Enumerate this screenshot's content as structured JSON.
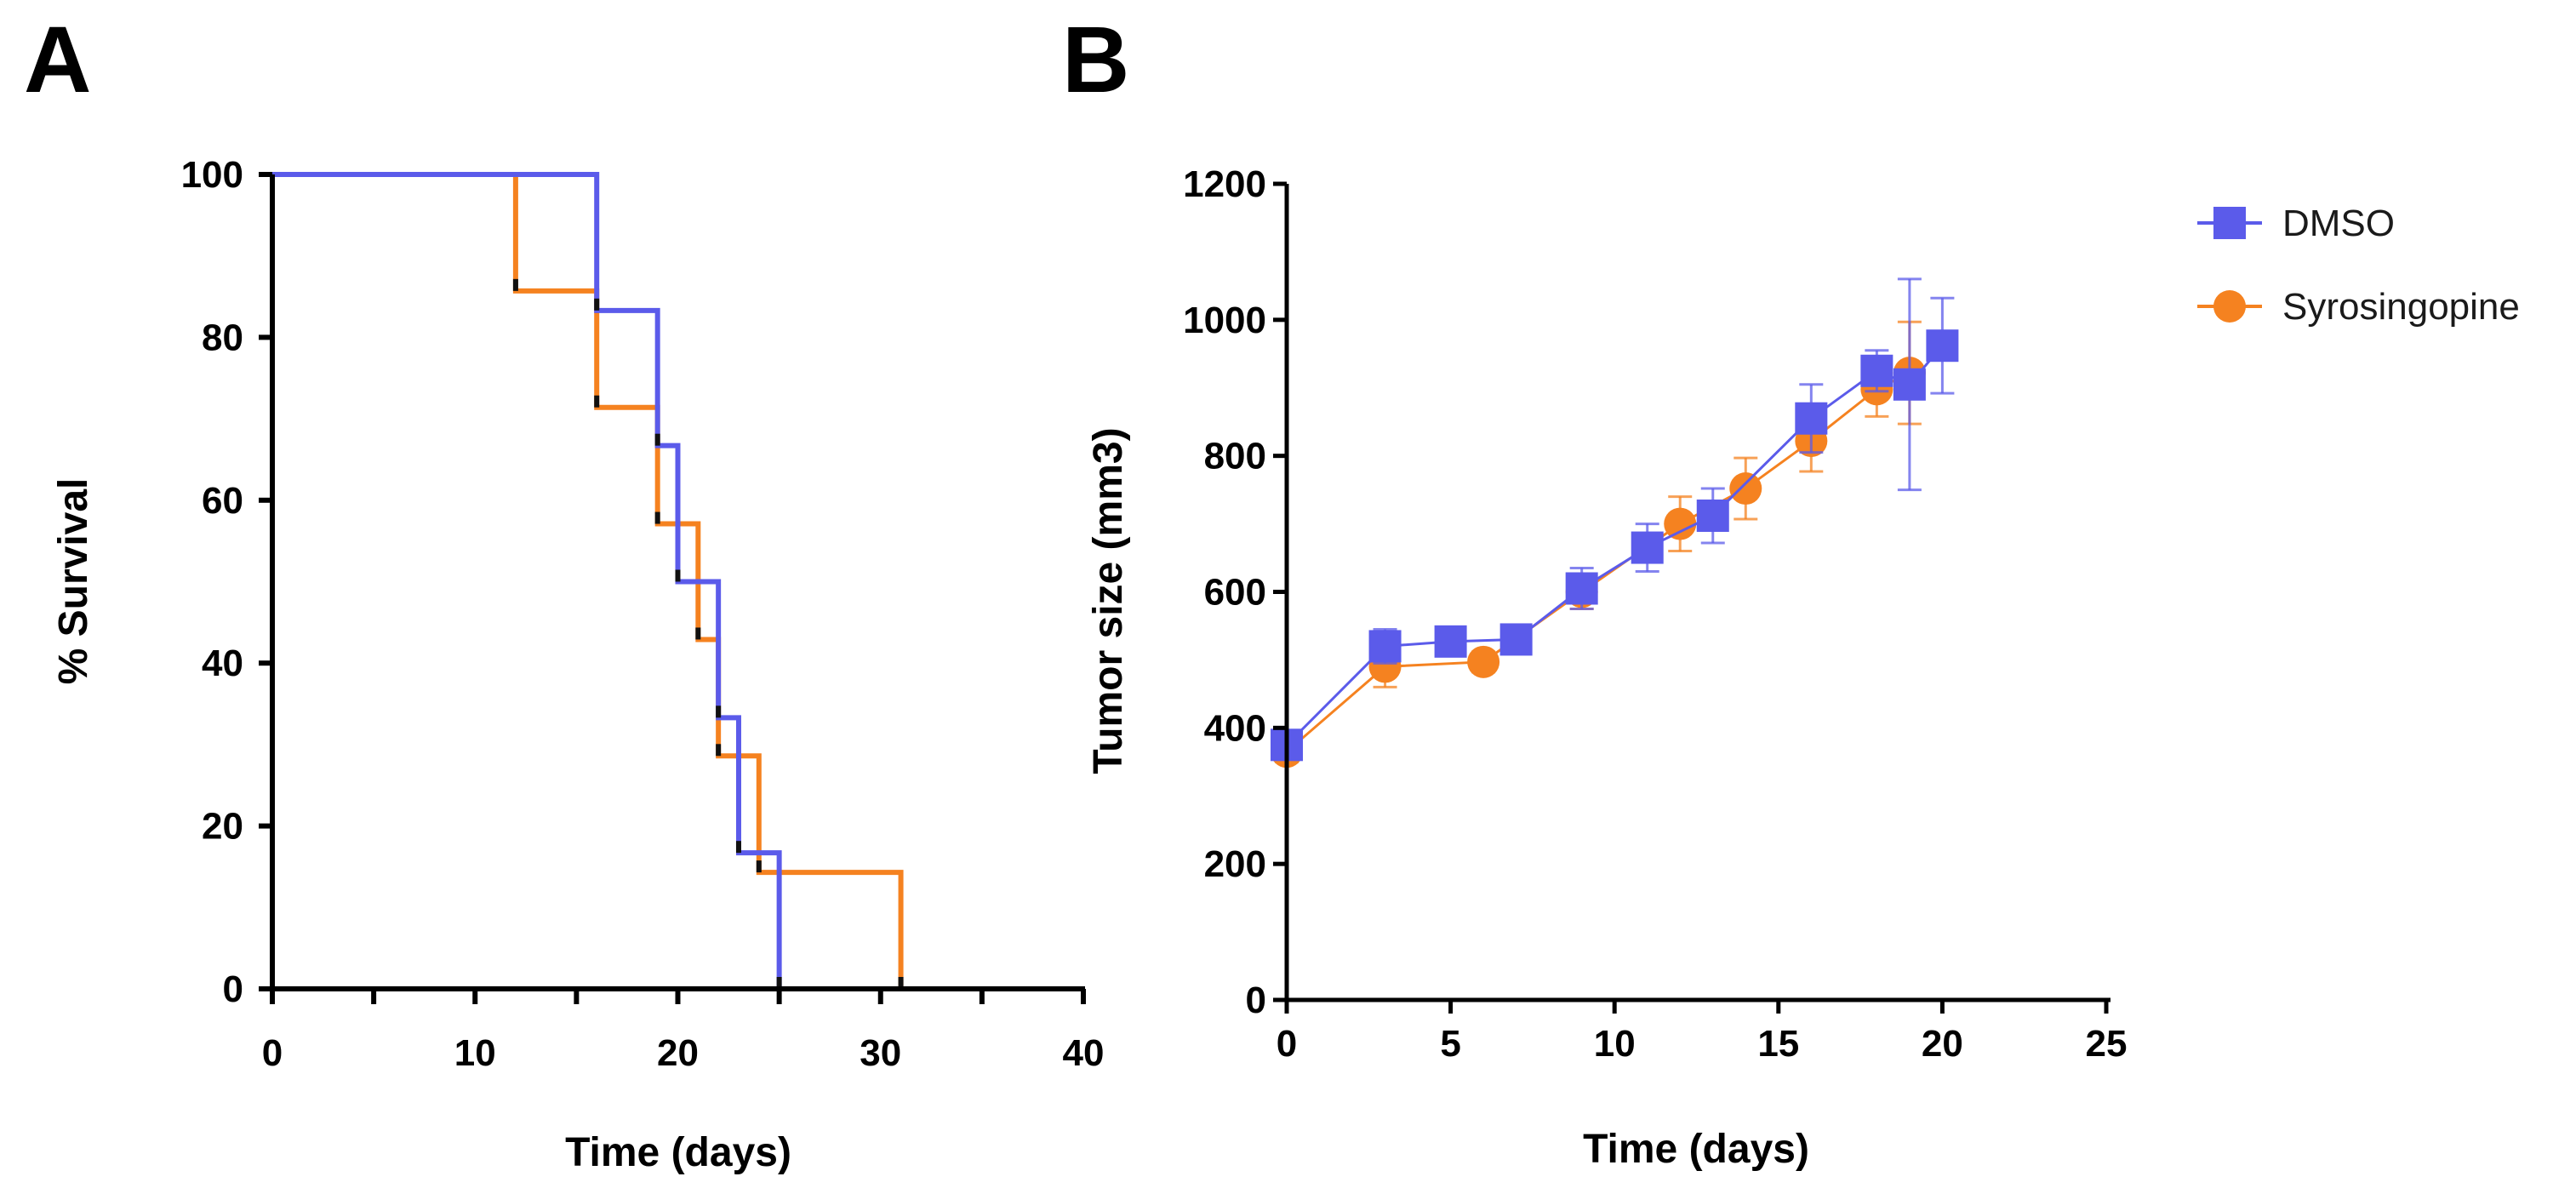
{
  "panels": {
    "a_label": "A",
    "b_label": "B"
  },
  "chart_data": [
    {
      "type": "line",
      "subtype": "kaplan-meier",
      "panel": "A",
      "title": "",
      "xlabel": "Time (days)",
      "ylabel": "% Survival",
      "xlim": [
        0,
        40
      ],
      "ylim": [
        0,
        100
      ],
      "x_ticks": [
        0,
        10,
        20,
        30,
        40
      ],
      "x_minor_ticks": [
        5,
        15,
        25,
        35
      ],
      "y_ticks": [
        0,
        20,
        40,
        60,
        80,
        100
      ],
      "grid": false,
      "series": [
        {
          "name": "Syrosingopine",
          "color": "#f58220",
          "steps": [
            [
              0,
              100
            ],
            [
              12,
              85.7
            ],
            [
              16,
              71.4
            ],
            [
              19,
              57.1
            ],
            [
              21,
              42.9
            ],
            [
              22,
              28.6
            ],
            [
              24,
              14.3
            ],
            [
              31,
              0
            ]
          ],
          "censored": []
        },
        {
          "name": "DMSO",
          "color": "#5b5bea",
          "steps": [
            [
              0,
              100
            ],
            [
              16,
              83.3
            ],
            [
              19,
              66.7
            ],
            [
              20,
              50
            ],
            [
              22,
              33.3
            ],
            [
              23,
              16.7
            ],
            [
              25,
              0
            ]
          ],
          "censored": []
        }
      ]
    },
    {
      "type": "line",
      "panel": "B",
      "title": "",
      "xlabel": "Time (days)",
      "ylabel": "Tumor size (mm3)",
      "xlim": [
        0,
        25
      ],
      "ylim": [
        0,
        1200
      ],
      "x_ticks": [
        0,
        5,
        10,
        15,
        20,
        25
      ],
      "y_ticks": [
        0,
        200,
        400,
        600,
        800,
        1000,
        1200
      ],
      "grid": false,
      "legend_position": "top-right",
      "series": [
        {
          "name": "DMSO",
          "color": "#5b5bea",
          "marker": "square",
          "x": [
            0,
            3,
            5,
            7,
            9,
            11,
            13,
            16,
            18,
            19,
            20
          ],
          "y": [
            375,
            520,
            527,
            530,
            605,
            665,
            712,
            855,
            925,
            905,
            962
          ],
          "err": [
            15,
            25,
            20,
            18,
            30,
            35,
            40,
            50,
            30,
            155,
            70
          ]
        },
        {
          "name": "Syrosingopine",
          "color": "#f58220",
          "marker": "circle",
          "x": [
            0,
            3,
            6,
            9,
            12,
            14,
            16,
            18,
            19
          ],
          "y": [
            365,
            490,
            497,
            600,
            700,
            752,
            822,
            898,
            922
          ],
          "err": [
            15,
            30,
            15,
            25,
            40,
            45,
            45,
            40,
            75
          ]
        }
      ]
    }
  ]
}
